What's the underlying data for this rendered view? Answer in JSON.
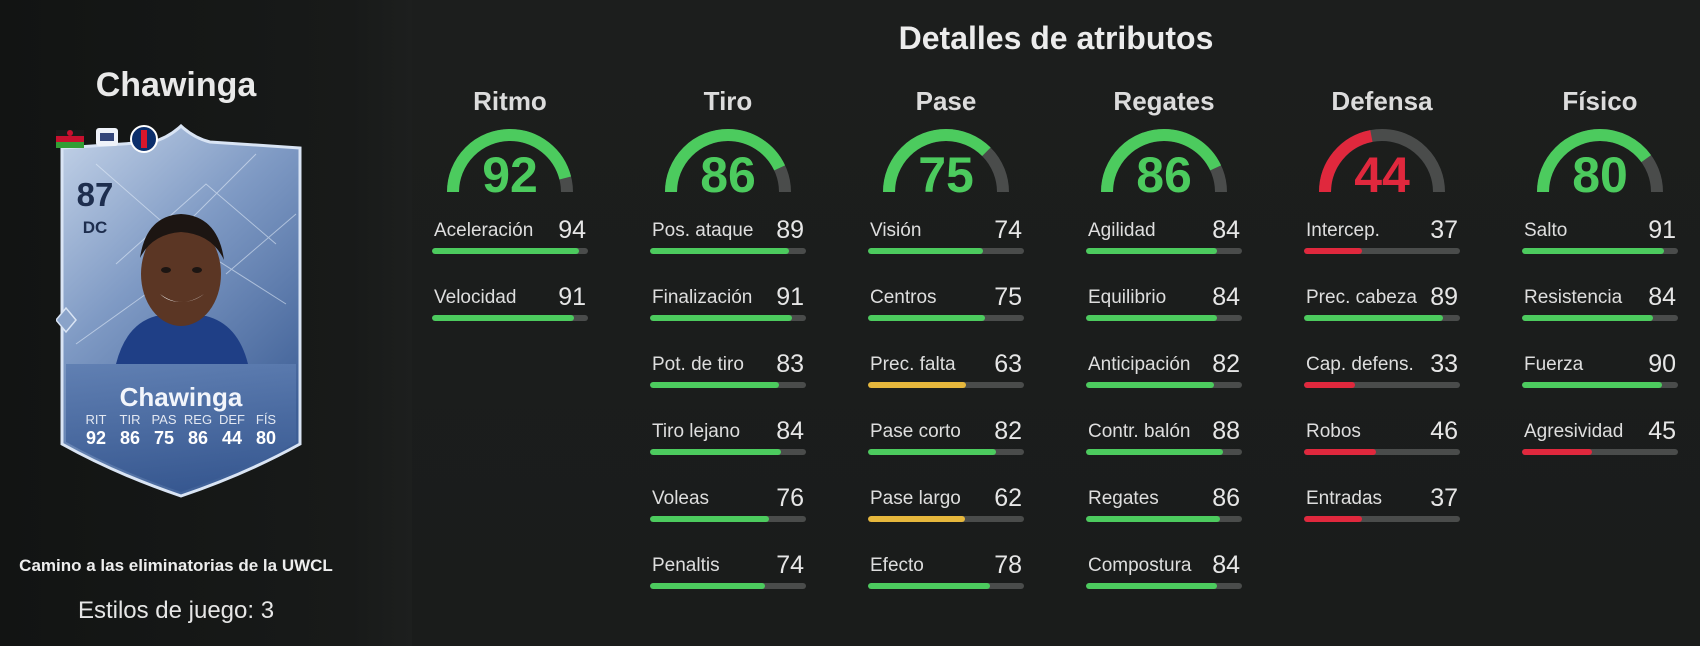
{
  "player": {
    "name": "Chawinga",
    "card": {
      "rating": "87",
      "position": "DC",
      "name": "Chawinga",
      "stats": [
        {
          "label": "RIT",
          "value": "92"
        },
        {
          "label": "TIR",
          "value": "86"
        },
        {
          "label": "PAS",
          "value": "75"
        },
        {
          "label": "REG",
          "value": "86"
        },
        {
          "label": "DEF",
          "value": "44"
        },
        {
          "label": "FÍS",
          "value": "80"
        }
      ]
    },
    "promo": "Camino a las eliminatorias de la UWCL",
    "playstyles": "Estilos de juego: 3"
  },
  "section_title": "Detalles de atributos",
  "colors": {
    "high": "#4ccb5e",
    "mid": "#e6b73c",
    "low": "#e0283d",
    "track": "#4a4c4b"
  },
  "categories": [
    {
      "title": "Ritmo",
      "value": 92,
      "attributes": [
        {
          "label": "Aceleración",
          "value": 94
        },
        {
          "label": "Velocidad",
          "value": 91
        }
      ]
    },
    {
      "title": "Tiro",
      "value": 86,
      "attributes": [
        {
          "label": "Pos. ataque",
          "value": 89
        },
        {
          "label": "Finalización",
          "value": 91
        },
        {
          "label": "Pot. de tiro",
          "value": 83
        },
        {
          "label": "Tiro lejano",
          "value": 84
        },
        {
          "label": "Voleas",
          "value": 76
        },
        {
          "label": "Penaltis",
          "value": 74
        }
      ]
    },
    {
      "title": "Pase",
      "value": 75,
      "attributes": [
        {
          "label": "Visión",
          "value": 74
        },
        {
          "label": "Centros",
          "value": 75
        },
        {
          "label": "Prec. falta",
          "value": 63
        },
        {
          "label": "Pase corto",
          "value": 82
        },
        {
          "label": "Pase largo",
          "value": 62
        },
        {
          "label": "Efecto",
          "value": 78
        }
      ]
    },
    {
      "title": "Regates",
      "value": 86,
      "attributes": [
        {
          "label": "Agilidad",
          "value": 84
        },
        {
          "label": "Equilibrio",
          "value": 84
        },
        {
          "label": "Anticipación",
          "value": 82
        },
        {
          "label": "Contr. balón",
          "value": 88
        },
        {
          "label": "Regates",
          "value": 86
        },
        {
          "label": "Compostura",
          "value": 84
        }
      ]
    },
    {
      "title": "Defensa",
      "value": 44,
      "attributes": [
        {
          "label": "Intercep.",
          "value": 37
        },
        {
          "label": "Prec. cabeza",
          "value": 89
        },
        {
          "label": "Cap. defens.",
          "value": 33
        },
        {
          "label": "Robos",
          "value": 46
        },
        {
          "label": "Entradas",
          "value": 37
        }
      ]
    },
    {
      "title": "Físico",
      "value": 80,
      "attributes": [
        {
          "label": "Salto",
          "value": 91
        },
        {
          "label": "Resistencia",
          "value": 84
        },
        {
          "label": "Fuerza",
          "value": 90
        },
        {
          "label": "Agresividad",
          "value": 45
        }
      ]
    }
  ]
}
